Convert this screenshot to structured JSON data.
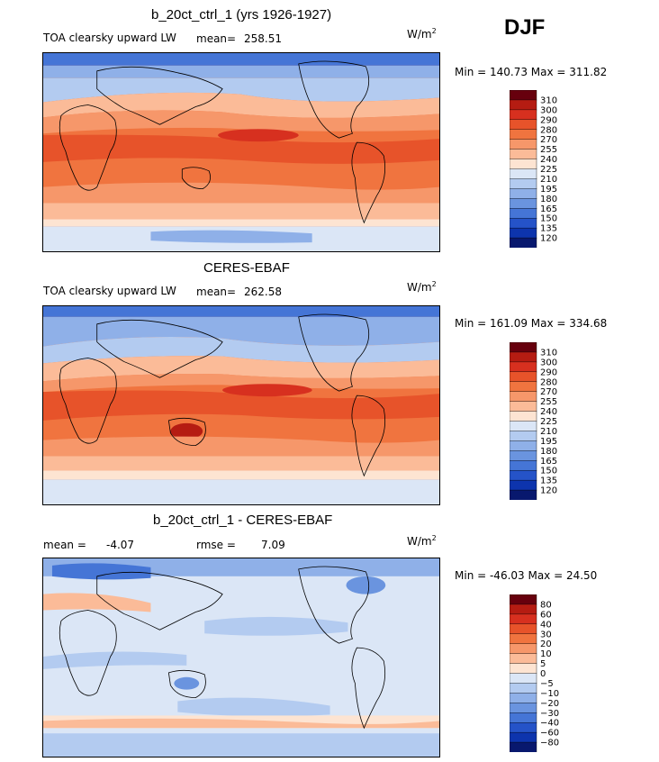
{
  "season": "DJF",
  "units": {
    "base": "W/m",
    "exp": "2"
  },
  "scale_abs": {
    "ticks": [
      "310",
      "300",
      "290",
      "280",
      "270",
      "255",
      "240",
      "225",
      "210",
      "195",
      "180",
      "165",
      "150",
      "135",
      "120"
    ],
    "colors": [
      "#67000d",
      "#b51c12",
      "#d7301f",
      "#e7532a",
      "#f0743f",
      "#f6976a",
      "#fbbb98",
      "#fde4d2",
      "#dbe6f6",
      "#b3cbf0",
      "#8fb0e8",
      "#6a94df",
      "#4575d6",
      "#2553c8",
      "#0d34ad",
      "#08186e"
    ]
  },
  "scale_diff": {
    "ticks": [
      "80",
      "60",
      "40",
      "30",
      "20",
      "10",
      "5",
      "0",
      "−5",
      "−10",
      "−20",
      "−30",
      "−40",
      "−60",
      "−80"
    ],
    "colors": [
      "#67000d",
      "#b51c12",
      "#d7301f",
      "#e7532a",
      "#f0743f",
      "#f6976a",
      "#fbbb98",
      "#fde4d2",
      "#dbe6f6",
      "#b3cbf0",
      "#8fb0e8",
      "#6a94df",
      "#4575d6",
      "#2553c8",
      "#0d34ad",
      "#08186e"
    ]
  },
  "chart_data": [
    {
      "type": "heatmap",
      "title": "b_20ct_ctrl_1 (yrs 1926-1927)",
      "variable": "TOA clearsky upward LW",
      "mean_label": "mean=",
      "mean": "258.51",
      "minmax": "Min = 140.73 Max = 311.82",
      "min": 140.73,
      "max": 311.82,
      "scale": "scale_abs"
    },
    {
      "type": "heatmap",
      "title": "CERES-EBAF",
      "variable": "TOA clearsky upward LW",
      "mean_label": "mean=",
      "mean": "262.58",
      "minmax": "Min = 161.09 Max = 334.68",
      "min": 161.09,
      "max": 334.68,
      "scale": "scale_abs"
    },
    {
      "type": "heatmap",
      "title": "b_20ct_ctrl_1 - CERES-EBAF",
      "mean_label": "mean =",
      "mean": "-4.07",
      "rmse_label": "rmse =",
      "rmse": "7.09",
      "minmax": "Min = -46.03 Max =  24.50",
      "min": -46.03,
      "max": 24.5,
      "scale": "scale_diff"
    }
  ]
}
